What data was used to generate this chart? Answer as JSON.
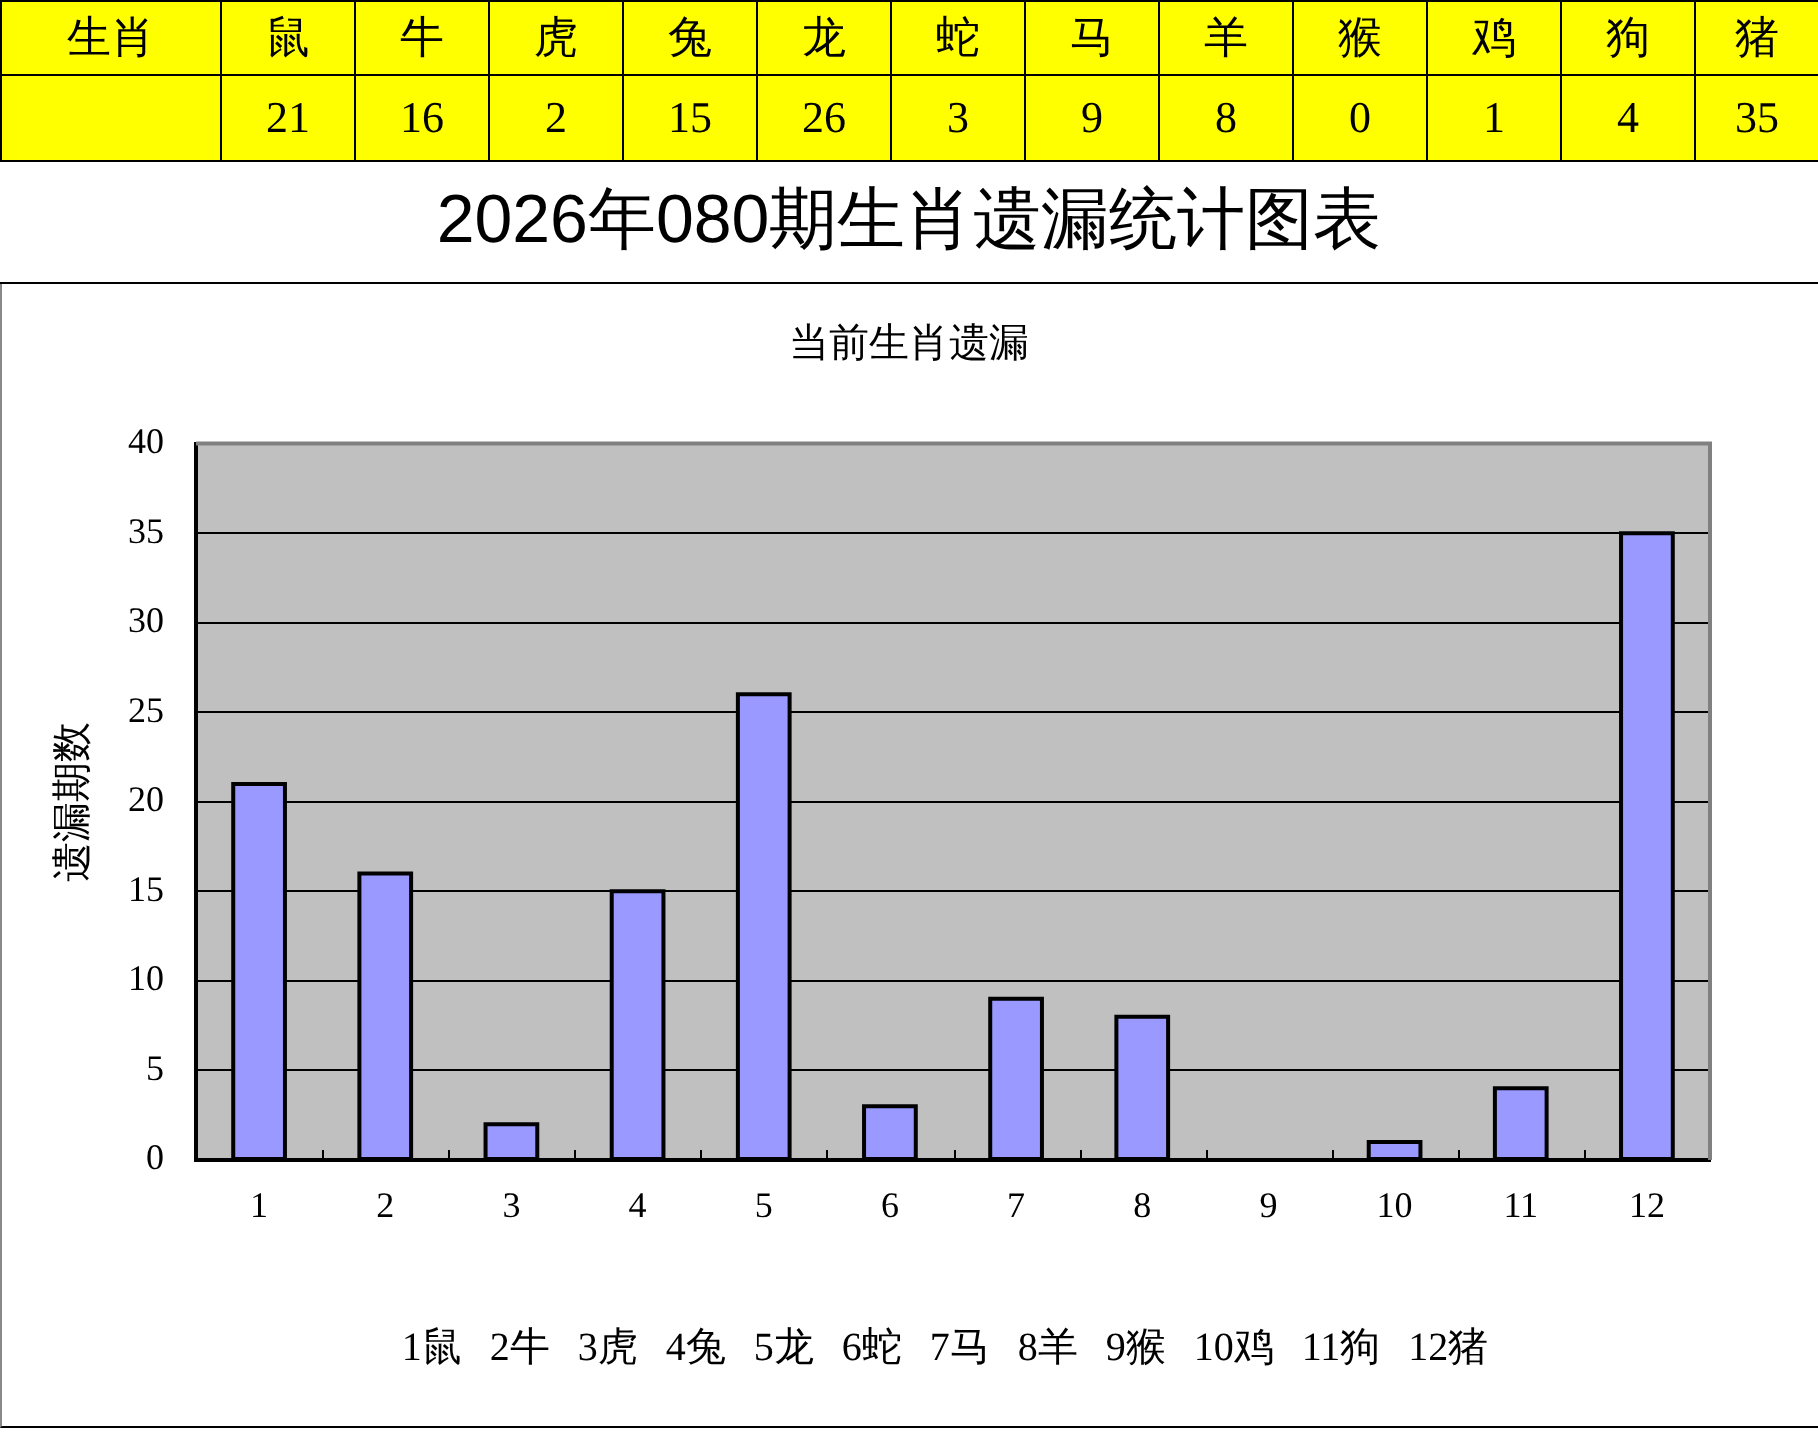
{
  "chart_data": [
    {
      "type": "other",
      "xlabel": "生肖",
      "categories": [
        "鼠",
        "牛",
        "虎",
        "兔",
        "龙",
        "蛇",
        "马",
        "羊",
        "猴",
        "鸡",
        "狗",
        "猪"
      ],
      "values": [
        21,
        16,
        2,
        15,
        26,
        3,
        9,
        8,
        0,
        1,
        4,
        35
      ],
      "color": "#ffff00",
      "data_labels": true
    },
    {
      "type": "bar",
      "title": "2026年080期生肖遗漏统计图表",
      "subtitle": "当前生肖遗漏",
      "ylabel": "遗漏期数",
      "categories": [
        "1",
        "2",
        "3",
        "4",
        "5",
        "6",
        "7",
        "8",
        "9",
        "10",
        "11",
        "12"
      ],
      "values": [
        21,
        16,
        2,
        15,
        26,
        3,
        9,
        8,
        0,
        1,
        4,
        35
      ],
      "color": "#9999ff",
      "ylim": [
        0,
        40
      ],
      "yticks": [
        0,
        5,
        10,
        15,
        20,
        25,
        30,
        35,
        40
      ],
      "grid": "y",
      "annotations": [
        "1鼠 2牛 3虎 4兔 5龙 6蛇 7马 8羊 9猴 10鸡 11狗 12猪"
      ]
    }
  ]
}
